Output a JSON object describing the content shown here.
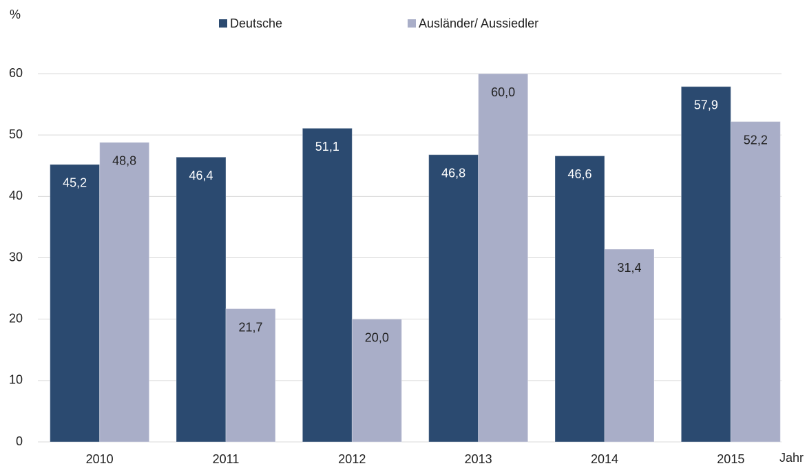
{
  "chart_data": {
    "type": "bar",
    "y_label": "%",
    "x_label": "Jahr",
    "categories": [
      "2010",
      "2011",
      "2012",
      "2013",
      "2014",
      "2015"
    ],
    "series": [
      {
        "name": "Deutsche",
        "color": "#2b4a70",
        "label_color": "#ffffff",
        "values": [
          45.2,
          46.4,
          51.1,
          46.8,
          46.6,
          57.9
        ],
        "value_labels": [
          "45,2",
          "46,4",
          "51,1",
          "46,8",
          "46,6",
          "57,9"
        ]
      },
      {
        "name": "Ausländer/ Aussiedler",
        "color": "#a9aec8",
        "label_color": "#222222",
        "values": [
          48.8,
          21.7,
          20.0,
          60.0,
          31.4,
          52.2
        ],
        "value_labels": [
          "48,8",
          "21,7",
          "20,0",
          "60,0",
          "31,4",
          "52,2"
        ]
      }
    ],
    "ylim": [
      0,
      60
    ],
    "yticks": [
      0,
      10,
      20,
      30,
      40,
      50,
      60
    ],
    "grid": true
  }
}
